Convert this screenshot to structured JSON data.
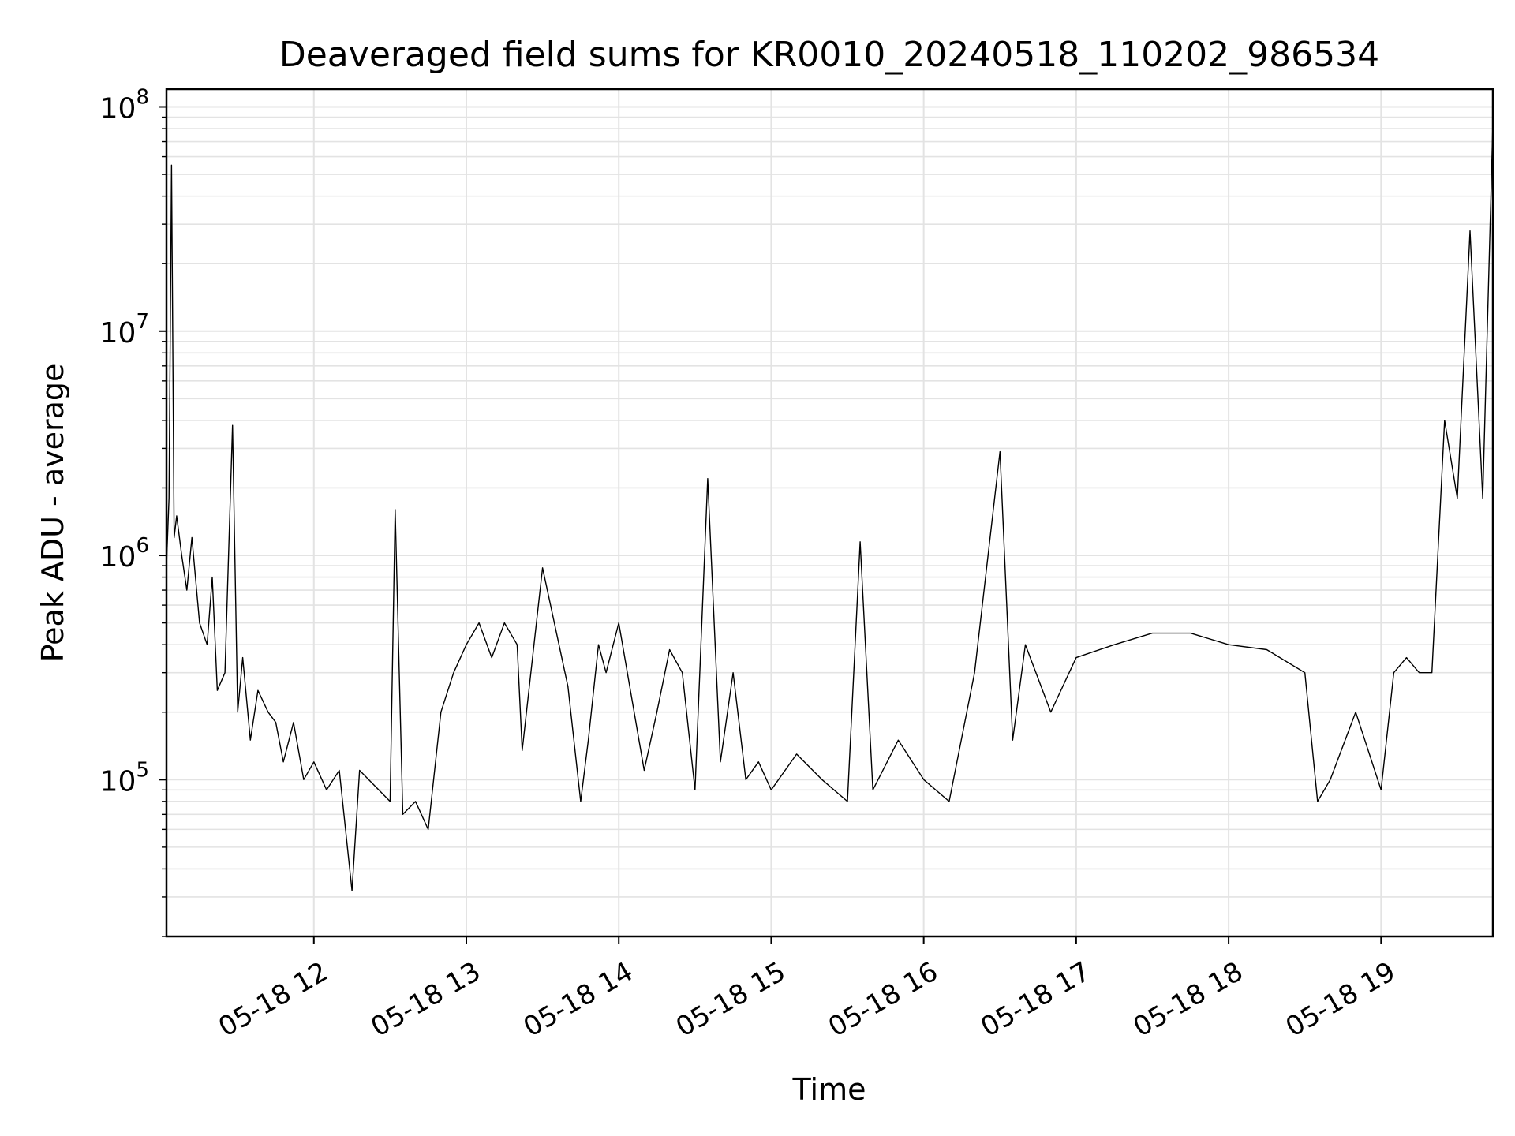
{
  "chart_data": {
    "type": "line",
    "title": "Deaveraged field sums for KR0010_20240518_110202_986534",
    "xlabel": "Time",
    "ylabel": "Peak ADU - average",
    "yscale": "log",
    "ylim": [
      20000,
      120000000
    ],
    "xlim": [
      "2024-05-18 11:02",
      "2024-05-18 19:44"
    ],
    "grid": true,
    "line_color": "#000000",
    "x_ticks": [
      "2024-05-18 12:00",
      "2024-05-18 13:00",
      "2024-05-18 14:00",
      "2024-05-18 15:00",
      "2024-05-18 16:00",
      "2024-05-18 17:00",
      "2024-05-18 18:00",
      "2024-05-18 19:00"
    ],
    "x_tick_labels": [
      "05-18 12",
      "05-18 13",
      "05-18 14",
      "05-18 15",
      "05-18 16",
      "05-18 17",
      "05-18 18",
      "05-18 19"
    ],
    "y_ticks": [
      100000,
      1000000,
      10000000,
      100000000
    ],
    "y_tick_labels": [
      {
        "base": "10",
        "exp": "5"
      },
      {
        "base": "10",
        "exp": "6"
      },
      {
        "base": "10",
        "exp": "7"
      },
      {
        "base": "10",
        "exp": "8"
      }
    ],
    "series": [
      {
        "x": [
          "2024-05-18 11:02",
          "2024-05-18 11:03",
          "2024-05-18 11:04",
          "2024-05-18 11:05",
          "2024-05-18 11:06",
          "2024-05-18 11:08",
          "2024-05-18 11:10",
          "2024-05-18 11:12",
          "2024-05-18 11:15",
          "2024-05-18 11:18",
          "2024-05-18 11:20",
          "2024-05-18 11:22",
          "2024-05-18 11:25",
          "2024-05-18 11:28",
          "2024-05-18 11:30",
          "2024-05-18 11:32",
          "2024-05-18 11:35",
          "2024-05-18 11:38",
          "2024-05-18 11:42",
          "2024-05-18 11:45",
          "2024-05-18 11:48",
          "2024-05-18 11:52",
          "2024-05-18 11:56",
          "2024-05-18 12:00",
          "2024-05-18 12:05",
          "2024-05-18 12:10",
          "2024-05-18 12:15",
          "2024-05-18 12:18",
          "2024-05-18 12:30",
          "2024-05-18 12:32",
          "2024-05-18 12:35",
          "2024-05-18 12:40",
          "2024-05-18 12:45",
          "2024-05-18 12:50",
          "2024-05-18 12:55",
          "2024-05-18 13:00",
          "2024-05-18 13:05",
          "2024-05-18 13:10",
          "2024-05-18 13:15",
          "2024-05-18 13:20",
          "2024-05-18 13:22",
          "2024-05-18 13:30",
          "2024-05-18 13:40",
          "2024-05-18 13:45",
          "2024-05-18 13:48",
          "2024-05-18 13:52",
          "2024-05-18 13:55",
          "2024-05-18 14:00",
          "2024-05-18 14:10",
          "2024-05-18 14:15",
          "2024-05-18 14:20",
          "2024-05-18 14:25",
          "2024-05-18 14:30",
          "2024-05-18 14:35",
          "2024-05-18 14:40",
          "2024-05-18 14:45",
          "2024-05-18 14:50",
          "2024-05-18 14:55",
          "2024-05-18 15:00",
          "2024-05-18 15:10",
          "2024-05-18 15:20",
          "2024-05-18 15:30",
          "2024-05-18 15:35",
          "2024-05-18 15:40",
          "2024-05-18 15:50",
          "2024-05-18 16:00",
          "2024-05-18 16:10",
          "2024-05-18 16:20",
          "2024-05-18 16:30",
          "2024-05-18 16:35",
          "2024-05-18 16:40",
          "2024-05-18 16:50",
          "2024-05-18 17:00",
          "2024-05-18 17:15",
          "2024-05-18 17:30",
          "2024-05-18 17:45",
          "2024-05-18 18:00",
          "2024-05-18 18:15",
          "2024-05-18 18:30",
          "2024-05-18 18:35",
          "2024-05-18 18:40",
          "2024-05-18 18:50",
          "2024-05-18 19:00",
          "2024-05-18 19:05",
          "2024-05-18 19:10",
          "2024-05-18 19:15",
          "2024-05-18 19:20",
          "2024-05-18 19:25",
          "2024-05-18 19:30",
          "2024-05-18 19:35",
          "2024-05-18 19:40",
          "2024-05-18 19:44"
        ],
        "y": [
          900000,
          1800000,
          55000000,
          1200000,
          1500000,
          1000000,
          700000,
          1200000,
          500000,
          400000,
          800000,
          250000,
          300000,
          3800000,
          200000,
          350000,
          150000,
          250000,
          200000,
          180000,
          120000,
          180000,
          100000,
          120000,
          90000,
          110000,
          32000,
          110000,
          80000,
          1600000,
          70000,
          80000,
          60000,
          200000,
          300000,
          400000,
          500000,
          350000,
          500000,
          400000,
          135000,
          880000,
          260000,
          80000,
          150000,
          400000,
          300000,
          500000,
          110000,
          200000,
          380000,
          300000,
          90000,
          2200000,
          120000,
          300000,
          100000,
          120000,
          90000,
          130000,
          100000,
          80000,
          1150000,
          90000,
          150000,
          100000,
          80000,
          300000,
          2900000,
          150000,
          400000,
          200000,
          350000,
          400000,
          450000,
          450000,
          400000,
          380000,
          300000,
          80000,
          100000,
          200000,
          90000,
          300000,
          350000,
          300000,
          300000,
          4000000,
          1800000,
          28000000,
          1800000,
          85000000
        ]
      }
    ]
  }
}
